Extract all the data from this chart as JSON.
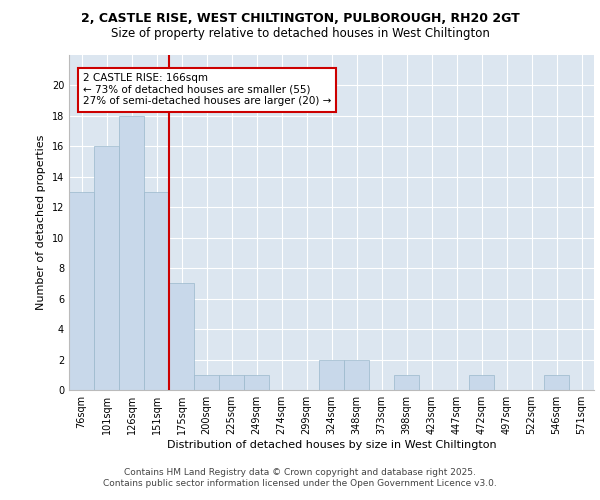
{
  "title1": "2, CASTLE RISE, WEST CHILTINGTON, PULBOROUGH, RH20 2GT",
  "title2": "Size of property relative to detached houses in West Chiltington",
  "xlabel": "Distribution of detached houses by size in West Chiltington",
  "ylabel": "Number of detached properties",
  "categories": [
    "76sqm",
    "101sqm",
    "126sqm",
    "151sqm",
    "175sqm",
    "200sqm",
    "225sqm",
    "249sqm",
    "274sqm",
    "299sqm",
    "324sqm",
    "348sqm",
    "373sqm",
    "398sqm",
    "423sqm",
    "447sqm",
    "472sqm",
    "497sqm",
    "522sqm",
    "546sqm",
    "571sqm"
  ],
  "values": [
    13,
    16,
    18,
    13,
    7,
    1,
    1,
    1,
    0,
    0,
    2,
    2,
    0,
    1,
    0,
    0,
    1,
    0,
    0,
    1,
    0
  ],
  "bar_color": "#c8d8ea",
  "bar_edge_color": "#9ab8cc",
  "vline_x_index": 3.5,
  "vline_color": "#cc0000",
  "annotation_line1": "2 CASTLE RISE: 166sqm",
  "annotation_line2": "← 73% of detached houses are smaller (55)",
  "annotation_line3": "27% of semi-detached houses are larger (20) →",
  "annotation_box_color": "#ffffff",
  "annotation_box_edge_color": "#cc0000",
  "ylim": [
    0,
    22
  ],
  "yticks": [
    0,
    2,
    4,
    6,
    8,
    10,
    12,
    14,
    16,
    18,
    20
  ],
  "bg_color": "#dce6f0",
  "fig_bg_color": "#ffffff",
  "footer_line1": "Contains HM Land Registry data © Crown copyright and database right 2025.",
  "footer_line2": "Contains public sector information licensed under the Open Government Licence v3.0.",
  "title1_fontsize": 9,
  "title2_fontsize": 8.5,
  "xlabel_fontsize": 8,
  "ylabel_fontsize": 8,
  "tick_fontsize": 7,
  "annotation_fontsize": 7.5,
  "footer_fontsize": 6.5
}
